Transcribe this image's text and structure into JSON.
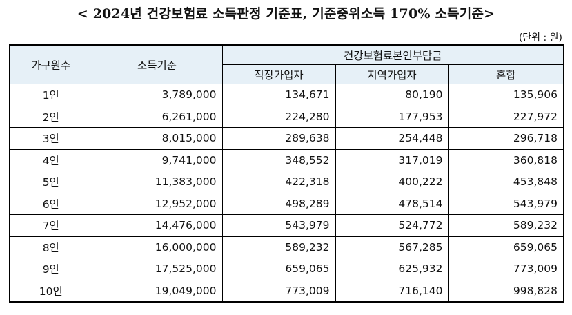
{
  "title": "< 2024년 건강보험료 소득판정 기준표, 기준중위소득 170% 소득기준>",
  "unit": "(단위 : 원)",
  "headers": {
    "household": "가구원수",
    "income": "소득기준",
    "burden": "건강보험료본인부담금",
    "employee": "직장가입자",
    "regional": "지역가입자",
    "mixed": "혼합"
  },
  "rows": [
    {
      "household": "1인",
      "income": "3,789,000",
      "employee": "134,671",
      "regional": "80,190",
      "mixed": "135,906"
    },
    {
      "household": "2인",
      "income": "6,261,000",
      "employee": "224,280",
      "regional": "177,953",
      "mixed": "227,972"
    },
    {
      "household": "3인",
      "income": "8,015,000",
      "employee": "289,638",
      "regional": "254,448",
      "mixed": "296,718"
    },
    {
      "household": "4인",
      "income": "9,741,000",
      "employee": "348,552",
      "regional": "317,019",
      "mixed": "360,818"
    },
    {
      "household": "5인",
      "income": "11,383,000",
      "employee": "422,318",
      "regional": "400,222",
      "mixed": "453,848"
    },
    {
      "household": "6인",
      "income": "12,952,000",
      "employee": "498,289",
      "regional": "478,514",
      "mixed": "543,979"
    },
    {
      "household": "7인",
      "income": "14,476,000",
      "employee": "543,979",
      "regional": "524,772",
      "mixed": "589,232"
    },
    {
      "household": "8인",
      "income": "16,000,000",
      "employee": "589,232",
      "regional": "567,285",
      "mixed": "659,065"
    },
    {
      "household": "9인",
      "income": "17,525,000",
      "employee": "659,065",
      "regional": "625,932",
      "mixed": "773,009"
    },
    {
      "household": "10인",
      "income": "19,049,000",
      "employee": "773,009",
      "regional": "716,140",
      "mixed": "998,828"
    }
  ]
}
